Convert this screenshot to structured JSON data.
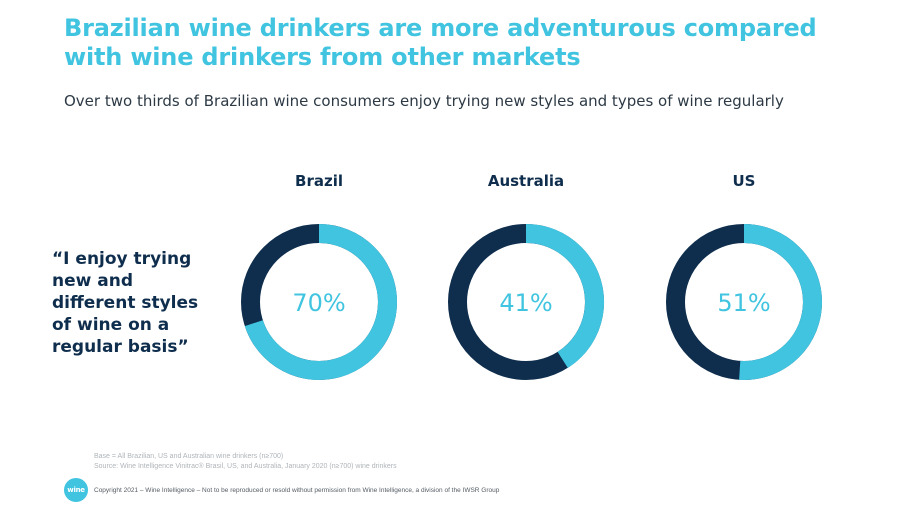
{
  "slide": {
    "title": "Brazilian wine drinkers are more adventurous compared with wine drinkers from other markets",
    "subtitle": "Over two thirds of Brazilian wine consumers enjoy trying new styles and types of wine regularly",
    "quote": "“I enjoy trying new and different styles of wine on a regular basis”"
  },
  "chart_data": {
    "type": "pie",
    "style": "donut",
    "categories": [
      "Brazil",
      "Australia",
      "US"
    ],
    "values": [
      70,
      41,
      51
    ],
    "value_labels": [
      "70%",
      "41%",
      "51%"
    ],
    "colors": {
      "value": "#40c4e0",
      "remainder": "#0f2e4d"
    }
  },
  "footer": {
    "base": "Base = All Brazilian, US and Australian wine drinkers (n≥700)",
    "source": "Source: Wine Intelligence Vinitrac® Brasil, US, and Australia, January 2020 (n≥700) wine drinkers",
    "copyright": "Copyright 2021 – Wine Intelligence – Not to be reproduced or resold without permission from Wine Intelligence, a division of the IWSR Group",
    "logo_text": "wine"
  }
}
